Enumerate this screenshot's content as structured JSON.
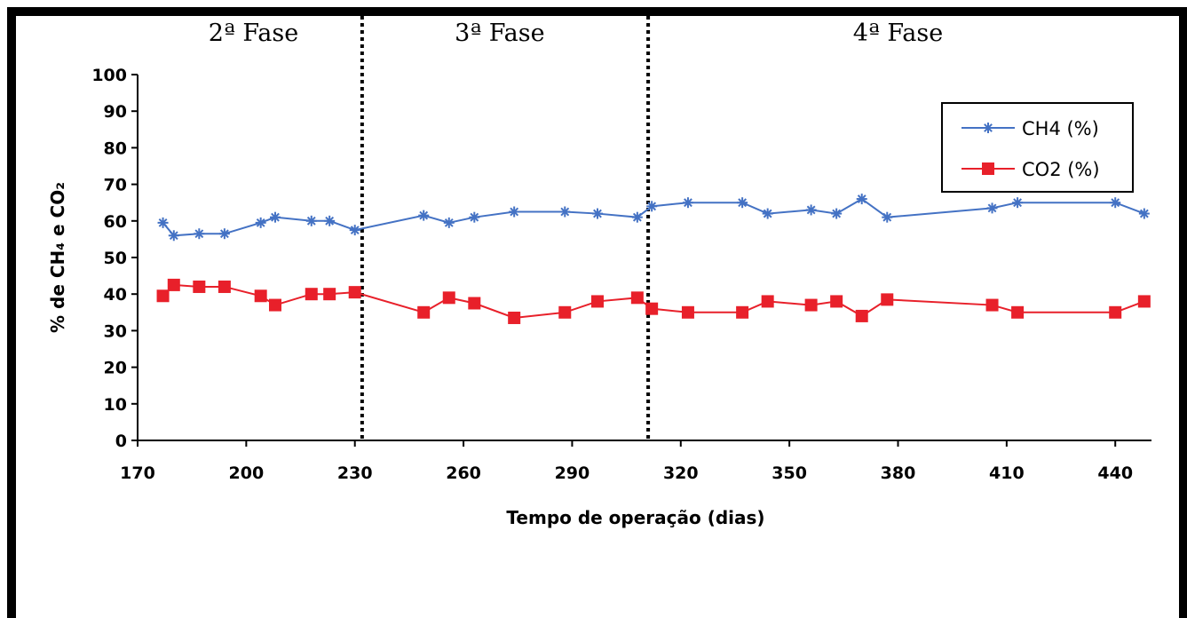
{
  "chart_data": {
    "type": "line",
    "xlabel": "Tempo de operação (dias)",
    "ylabel": "% de CH₄ e CO₂",
    "xlim": [
      170,
      450
    ],
    "ylim": [
      0,
      100
    ],
    "xticks": [
      170,
      200,
      230,
      260,
      290,
      320,
      350,
      380,
      410,
      440
    ],
    "yticks": [
      0,
      10,
      20,
      30,
      40,
      50,
      60,
      70,
      80,
      90,
      100
    ],
    "grid": false,
    "legend_position": "top-right",
    "phases": [
      {
        "label": "2ª Fase",
        "x_center": 202
      },
      {
        "label": "3ª Fase",
        "x_center": 270
      },
      {
        "label": "4ª Fase",
        "x_center": 380
      }
    ],
    "phase_boundaries": [
      232,
      311
    ],
    "series": [
      {
        "name": "CH4 (%)",
        "color": "#4472C4",
        "marker": "star",
        "x": [
          177,
          180,
          187,
          194,
          204,
          208,
          218,
          223,
          230,
          249,
          256,
          263,
          274,
          288,
          297,
          308,
          312,
          322,
          337,
          344,
          356,
          363,
          370,
          377,
          406,
          413,
          440,
          448
        ],
        "y": [
          59.5,
          56,
          56.5,
          56.5,
          59.5,
          61,
          60,
          60,
          57.5,
          61.5,
          59.5,
          61,
          62.5,
          62.5,
          62,
          61,
          64,
          65,
          65,
          62,
          63,
          62,
          66,
          61,
          63.5,
          65,
          65,
          62
        ]
      },
      {
        "name": "CO2 (%)",
        "color": "#E8202A",
        "marker": "square",
        "x": [
          177,
          180,
          187,
          194,
          204,
          208,
          218,
          223,
          230,
          249,
          256,
          263,
          274,
          288,
          297,
          308,
          312,
          322,
          337,
          344,
          356,
          363,
          370,
          377,
          406,
          413,
          440,
          448
        ],
        "y": [
          39.5,
          42.5,
          42,
          42,
          39.5,
          37,
          40,
          40,
          40.5,
          35,
          39,
          37.5,
          33.5,
          35,
          38,
          39,
          36,
          35,
          35,
          38,
          37,
          38,
          34,
          38.5,
          37,
          35,
          35,
          38
        ]
      }
    ]
  }
}
